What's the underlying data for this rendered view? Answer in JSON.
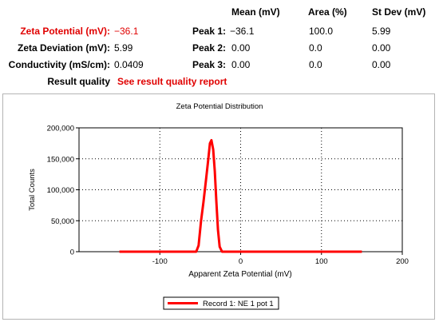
{
  "table": {
    "columns": [
      "Mean (mV)",
      "Area (%)",
      "St Dev (mV)"
    ],
    "rows": [
      {
        "label": "Zeta Potential (mV):",
        "value": "−36.1",
        "peak_label": "Peak 1:",
        "mean": "−36.1",
        "area": "100.0",
        "stdev": "5.99"
      },
      {
        "label": "Zeta Deviation (mV):",
        "value": "5.99",
        "peak_label": "Peak 2:",
        "mean": "0.00",
        "area": "0.0",
        "stdev": "0.00"
      },
      {
        "label": "Conductivity (mS/cm):",
        "value": "0.0409",
        "peak_label": "Peak 3:",
        "mean": "0.00",
        "area": "0.0",
        "stdev": "0.00"
      }
    ],
    "result_quality_label": "Result quality",
    "result_quality_link": "See result quality report"
  },
  "colors": {
    "highlight": "#e00000",
    "series": "#ff0000",
    "grid": "#000000"
  },
  "chart_data": {
    "type": "line",
    "title": "Zeta Potential Distribution",
    "xlabel": "Apparent Zeta Potential (mV)",
    "ylabel": "Total Counts",
    "xlim": [
      -200,
      200
    ],
    "ylim": [
      0,
      200000
    ],
    "xticks": [
      -100,
      0,
      100,
      200
    ],
    "xtick_labels": [
      "-100",
      "0",
      "100",
      "200"
    ],
    "yticks": [
      0,
      50000,
      100000,
      150000,
      200000
    ],
    "ytick_labels": [
      "0",
      "50,000",
      "100,000",
      "150,000",
      "200,000"
    ],
    "grid": true,
    "legend_position": "bottom",
    "series": [
      {
        "name": "Record 1: NE 1 pot 1",
        "color": "#ff0000",
        "x": [
          -150,
          -55,
          -52,
          -49,
          -46,
          -43,
          -40,
          -38,
          -36.1,
          -34,
          -32,
          -30,
          -28,
          -26,
          -23,
          -20,
          150
        ],
        "y": [
          0,
          0,
          10000,
          50000,
          80000,
          115000,
          150000,
          175000,
          180000,
          165000,
          130000,
          80000,
          35000,
          8000,
          0,
          0,
          0
        ]
      }
    ]
  }
}
